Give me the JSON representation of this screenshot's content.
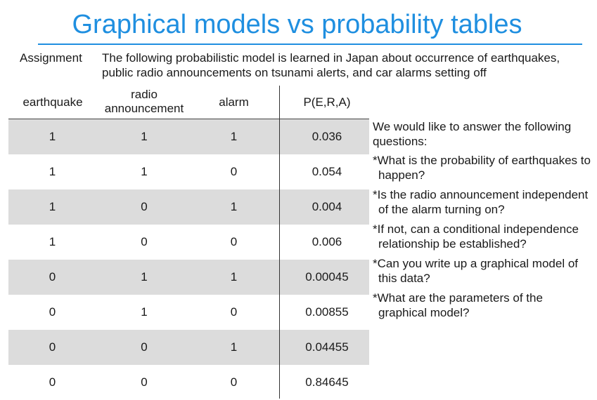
{
  "slide": {
    "title": "Graphical models vs probability tables",
    "assignment_label": "Assignment",
    "assignment_text": "The following probabilistic model is learned in Japan about occurrence of earthquakes, public radio announcements on tsunami alerts, and car alarms setting off"
  },
  "table": {
    "headers": {
      "earthquake": "earthquake",
      "radio": "radio announcement",
      "alarm": "alarm",
      "prob": "P(E,R,A)"
    },
    "rows": [
      {
        "e": "1",
        "r": "1",
        "a": "1",
        "p": "0.036"
      },
      {
        "e": "1",
        "r": "1",
        "a": "0",
        "p": "0.054"
      },
      {
        "e": "1",
        "r": "0",
        "a": "1",
        "p": "0.004"
      },
      {
        "e": "1",
        "r": "0",
        "a": "0",
        "p": "0.006"
      },
      {
        "e": "0",
        "r": "1",
        "a": "1",
        "p": "0.00045"
      },
      {
        "e": "0",
        "r": "1",
        "a": "0",
        "p": "0.00855"
      },
      {
        "e": "0",
        "r": "0",
        "a": "1",
        "p": "0.04455"
      },
      {
        "e": "0",
        "r": "0",
        "a": "0",
        "p": "0.84645"
      }
    ]
  },
  "questions": {
    "intro": "We would like to answer the following questions:",
    "items": [
      "*What is the probability of earthquakes to happen?",
      "*Is the radio announcement independent of the alarm turning on?",
      "*If not, can a conditional independence relationship be established?",
      "*Can you write up a graphical model of this data?",
      "*What are the parameters of the graphical model?"
    ]
  },
  "colors": {
    "title": "#1f8fe0",
    "row_shade": "#dcdcdc"
  }
}
